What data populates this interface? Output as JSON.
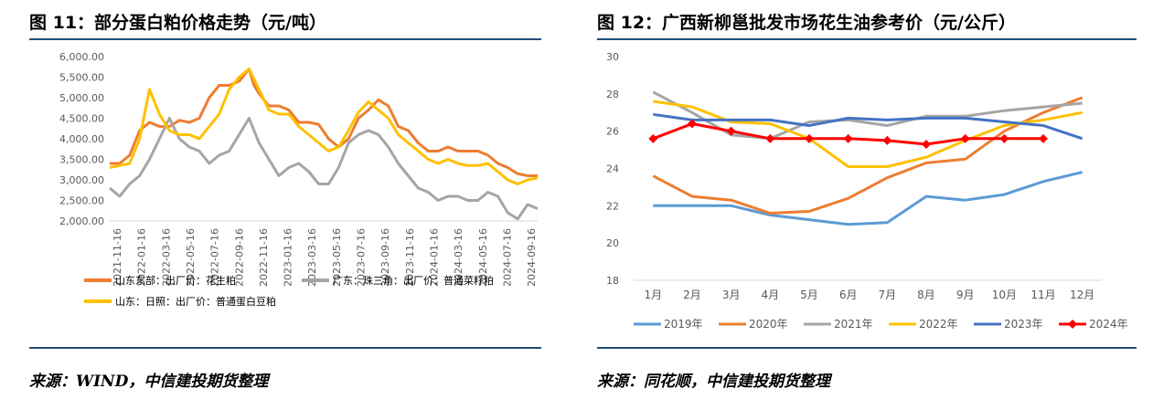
{
  "figures": [
    {
      "title": "图 11：部分蛋白粕价格走势（元/吨）",
      "source": "来源：WIND，中信建投期货整理"
    },
    {
      "title": "图 12：广西新柳邕批发市场花生油参考价（元/公斤）",
      "source": "来源：同花顺，中信建投期货整理"
    }
  ],
  "chart_data": [
    {
      "type": "line",
      "ylim": [
        2000,
        6000
      ],
      "yticks": [
        "2,000.00",
        "2,500.00",
        "3,000.00",
        "3,500.00",
        "4,000.00",
        "4,500.00",
        "5,000.00",
        "5,500.00",
        "6,000.00"
      ],
      "xticks": [
        "2021-11-16",
        "2022-01-16",
        "2022-03-16",
        "2022-05-16",
        "2022-07-16",
        "2022-09-16",
        "2022-11-16",
        "2023-01-16",
        "2023-03-16",
        "2023-05-16",
        "2023-07-16",
        "2023-09-16",
        "2023-11-16",
        "2024-01-16",
        "2024-03-16",
        "2024-05-16",
        "2024-07-16",
        "2024-09-16"
      ],
      "legend_position": "bottom",
      "series": [
        {
          "name": "山东东部：出厂价：花生粕",
          "color": "#ed7d31",
          "points": [
            [
              0,
              3400
            ],
            [
              1,
              3400
            ],
            [
              2,
              3600
            ],
            [
              3,
              4200
            ],
            [
              4,
              4400
            ],
            [
              5,
              4300
            ],
            [
              6,
              4300
            ],
            [
              7,
              4450
            ],
            [
              8,
              4400
            ],
            [
              9,
              4500
            ],
            [
              10,
              5000
            ],
            [
              11,
              5300
            ],
            [
              12,
              5300
            ],
            [
              13,
              5400
            ],
            [
              14,
              5700
            ],
            [
              14.5,
              5300
            ],
            [
              15,
              5100
            ],
            [
              16,
              4800
            ],
            [
              17,
              4800
            ],
            [
              18,
              4700
            ],
            [
              19,
              4400
            ],
            [
              20,
              4400
            ],
            [
              21,
              4350
            ],
            [
              22,
              4000
            ],
            [
              23,
              3800
            ],
            [
              24,
              4000
            ],
            [
              25,
              4500
            ],
            [
              26,
              4700
            ],
            [
              27,
              4950
            ],
            [
              28,
              4800
            ],
            [
              29,
              4300
            ],
            [
              30,
              4200
            ],
            [
              31,
              3900
            ],
            [
              32,
              3700
            ],
            [
              33,
              3700
            ],
            [
              34,
              3800
            ],
            [
              35,
              3700
            ],
            [
              36,
              3700
            ],
            [
              37,
              3700
            ],
            [
              38,
              3600
            ],
            [
              39,
              3400
            ],
            [
              40,
              3300
            ],
            [
              41,
              3150
            ],
            [
              42,
              3100
            ],
            [
              43,
              3100
            ]
          ]
        },
        {
          "name": "广东：珠三角：出厂价：普通菜籽粕",
          "color": "#a5a5a5",
          "points": [
            [
              0,
              2800
            ],
            [
              1,
              2600
            ],
            [
              2,
              2900
            ],
            [
              3,
              3100
            ],
            [
              4,
              3500
            ],
            [
              5,
              4000
            ],
            [
              6,
              4500
            ],
            [
              7,
              4000
            ],
            [
              8,
              3800
            ],
            [
              9,
              3700
            ],
            [
              10,
              3400
            ],
            [
              11,
              3600
            ],
            [
              12,
              3700
            ],
            [
              13,
              4100
            ],
            [
              14,
              4500
            ],
            [
              15,
              3900
            ],
            [
              16,
              3500
            ],
            [
              17,
              3100
            ],
            [
              18,
              3300
            ],
            [
              19,
              3400
            ],
            [
              20,
              3200
            ],
            [
              21,
              2900
            ],
            [
              22,
              2900
            ],
            [
              23,
              3300
            ],
            [
              24,
              3900
            ],
            [
              25,
              4100
            ],
            [
              26,
              4200
            ],
            [
              27,
              4100
            ],
            [
              28,
              3800
            ],
            [
              29,
              3400
            ],
            [
              30,
              3100
            ],
            [
              31,
              2800
            ],
            [
              32,
              2700
            ],
            [
              33,
              2500
            ],
            [
              34,
              2600
            ],
            [
              35,
              2600
            ],
            [
              36,
              2500
            ],
            [
              37,
              2500
            ],
            [
              38,
              2700
            ],
            [
              39,
              2600
            ],
            [
              40,
              2200
            ],
            [
              41,
              2050
            ],
            [
              42,
              2400
            ],
            [
              43,
              2300
            ]
          ]
        },
        {
          "name": "山东：日照：出厂价：普通蛋白豆粕",
          "color": "#ffc000",
          "points": [
            [
              0,
              3300
            ],
            [
              1,
              3350
            ],
            [
              2,
              3400
            ],
            [
              3,
              4000
            ],
            [
              4,
              5200
            ],
            [
              5,
              4600
            ],
            [
              6,
              4200
            ],
            [
              7,
              4100
            ],
            [
              8,
              4100
            ],
            [
              9,
              4000
            ],
            [
              10,
              4300
            ],
            [
              11,
              4600
            ],
            [
              12,
              5200
            ],
            [
              13,
              5500
            ],
            [
              14,
              5700
            ],
            [
              15,
              5200
            ],
            [
              16,
              4700
            ],
            [
              17,
              4600
            ],
            [
              18,
              4600
            ],
            [
              19,
              4300
            ],
            [
              20,
              4100
            ],
            [
              21,
              3900
            ],
            [
              22,
              3700
            ],
            [
              23,
              3800
            ],
            [
              24,
              4200
            ],
            [
              25,
              4650
            ],
            [
              26,
              4900
            ],
            [
              27,
              4700
            ],
            [
              28,
              4500
            ],
            [
              29,
              4100
            ],
            [
              30,
              3900
            ],
            [
              31,
              3700
            ],
            [
              32,
              3500
            ],
            [
              33,
              3400
            ],
            [
              34,
              3500
            ],
            [
              35,
              3400
            ],
            [
              36,
              3350
            ],
            [
              37,
              3350
            ],
            [
              38,
              3400
            ],
            [
              39,
              3200
            ],
            [
              40,
              3000
            ],
            [
              41,
              2900
            ],
            [
              42,
              3000
            ],
            [
              43,
              3050
            ]
          ]
        }
      ]
    },
    {
      "type": "line",
      "ylim": [
        18,
        30
      ],
      "yticks": [
        "18",
        "20",
        "22",
        "24",
        "26",
        "28",
        "30"
      ],
      "categories": [
        "1月",
        "2月",
        "3月",
        "4月",
        "5月",
        "6月",
        "7月",
        "8月",
        "9月",
        "10月",
        "11月",
        "12月"
      ],
      "legend_position": "bottom",
      "series": [
        {
          "name": "2019年",
          "color": "#5b9bd5",
          "values": [
            22.0,
            22.0,
            22.0,
            21.5,
            21.25,
            21.0,
            21.1,
            22.5,
            22.3,
            22.6,
            23.3,
            23.8
          ]
        },
        {
          "name": "2020年",
          "color": "#ed7d31",
          "values": [
            23.6,
            22.5,
            22.3,
            21.6,
            21.7,
            22.4,
            23.5,
            24.3,
            24.5,
            26.0,
            27.0,
            27.8
          ]
        },
        {
          "name": "2021年",
          "color": "#a5a5a5",
          "values": [
            28.1,
            27.0,
            25.8,
            25.6,
            26.5,
            26.6,
            26.3,
            26.8,
            26.8,
            27.1,
            27.3,
            27.5
          ]
        },
        {
          "name": "2022年",
          "color": "#ffc000",
          "values": [
            27.6,
            27.3,
            26.5,
            26.4,
            25.6,
            24.1,
            24.1,
            24.6,
            25.5,
            26.3,
            26.6,
            27.0
          ]
        },
        {
          "name": "2023年",
          "color": "#4472c4",
          "values": [
            26.9,
            26.6,
            26.6,
            26.6,
            26.3,
            26.7,
            26.6,
            26.7,
            26.7,
            26.5,
            26.3,
            25.6
          ]
        },
        {
          "name": "2024年",
          "color": "#ff0000",
          "marker": "diamond",
          "values": [
            25.6,
            26.4,
            26.0,
            25.6,
            25.6,
            25.6,
            25.5,
            25.3,
            25.6,
            25.6,
            25.6,
            null
          ]
        }
      ]
    }
  ]
}
